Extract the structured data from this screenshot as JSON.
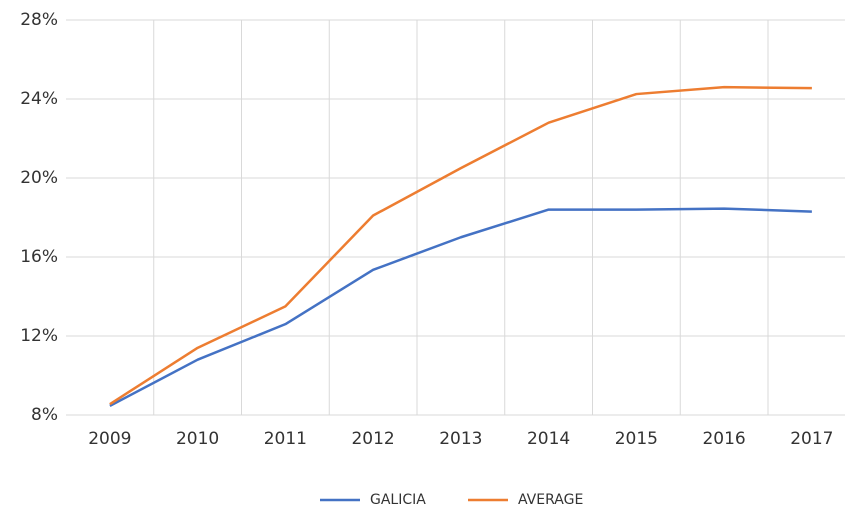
{
  "chart_data": {
    "type": "line",
    "categories": [
      "2009",
      "2010",
      "2011",
      "2012",
      "2013",
      "2014",
      "2015",
      "2016",
      "2017"
    ],
    "series": [
      {
        "name": "GALICIA",
        "color": "#4472c4",
        "values": [
          8.46,
          10.8,
          12.6,
          15.35,
          17.0,
          18.4,
          18.4,
          18.45,
          18.3
        ]
      },
      {
        "name": "AVERAGE",
        "color": "#ed7d31",
        "values": [
          8.55,
          11.4,
          13.5,
          18.1,
          20.5,
          22.8,
          24.25,
          24.6,
          24.55
        ]
      }
    ],
    "ylim": [
      8,
      28
    ],
    "yticks": [
      {
        "value": 8,
        "label": "8%"
      },
      {
        "value": 12,
        "label": "12%"
      },
      {
        "value": 16,
        "label": "16%"
      },
      {
        "value": 20,
        "label": "20%"
      },
      {
        "value": 24,
        "label": "24%"
      },
      {
        "value": 28,
        "label": "28%"
      }
    ],
    "grid": true,
    "legend": "bottom"
  }
}
